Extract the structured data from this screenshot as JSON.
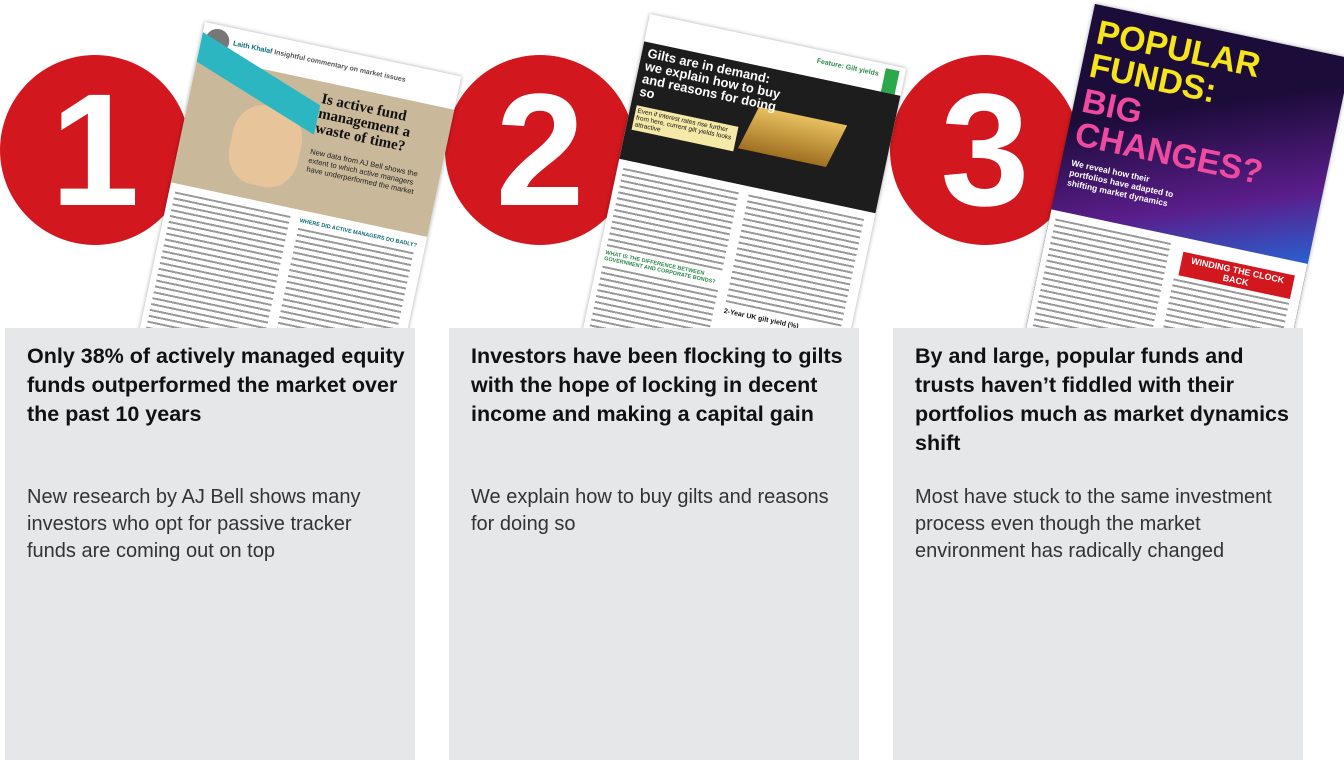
{
  "items": [
    {
      "number": "1",
      "page": {
        "author": "Laith Khalaf",
        "column": "Insightful commentary on market issues",
        "title": "Is active fund management a waste of time?",
        "standfirst": "New data from AJ Bell shows the extent to which active managers have underperformed the market",
        "subhead": "WHERE DID ACTIVE MANAGERS DO BADLY?"
      },
      "headline": "Only 38% of actively managed equity funds outperformed the market over the past 10 years",
      "description": "New research by AJ Bell shows many investors who opt for passive tracker funds are coming out on top"
    },
    {
      "number": "2",
      "page": {
        "section": "Feature: Gilt yields",
        "title": "Gilts are in demand: we explain how to buy and reasons for doing so",
        "standfirst": "Even if interest rates rise further from here, current gilt yields looks attractive",
        "subhead": "WHAT IS THE DIFFERENCE BETWEEN GOVERNMENT AND CORPORATE BONDS?",
        "chart_title": "2-Year UK gilt yield (%)"
      },
      "headline": "Investors have been flocking to gilts with the hope of locking in decent income and making a capital gain",
      "description": "We explain how to buy gilts and reasons for doing so"
    },
    {
      "number": "3",
      "page": {
        "title_1": "POPULAR FUNDS:",
        "title_2": "BIG CHANGES?",
        "standfirst": "We reveal how their portfolios have adapted to shifting market dynamics",
        "box": "WINDING THE CLOCK BACK"
      },
      "headline": "By and large, popular funds and trusts haven’t fiddled with their portfolios much as market dynamics shift",
      "description": "Most have stuck to the same investment process even though the market environment has radically changed"
    }
  ]
}
